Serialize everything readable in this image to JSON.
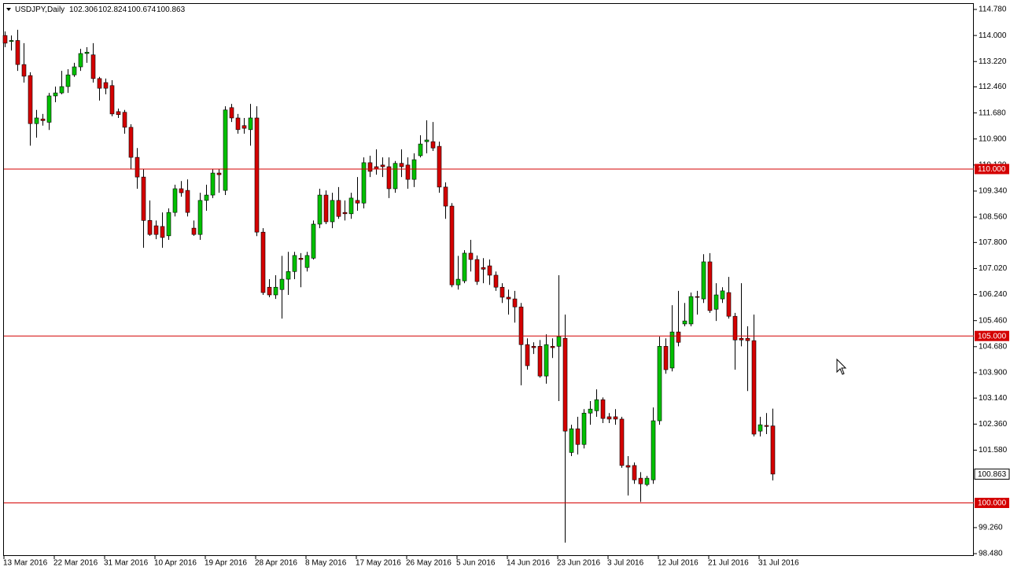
{
  "chart_data": {
    "type": "candlestick",
    "symbol": "USDJPY,Daily",
    "up_color": "#00c000",
    "down_color": "#d40000",
    "wick_color": "#000000",
    "hline_color": "#d40000",
    "ylim": [
      98.41,
      114.945
    ],
    "yticks": [
      {
        "value": 114.78,
        "label": "114.780"
      },
      {
        "value": 114.0,
        "label": "114.000"
      },
      {
        "value": 113.22,
        "label": "113.220"
      },
      {
        "value": 112.46,
        "label": "112.460"
      },
      {
        "value": 111.68,
        "label": "111.680"
      },
      {
        "value": 110.9,
        "label": "110.900"
      },
      {
        "value": 110.12,
        "label": "110.120"
      },
      {
        "value": 109.34,
        "label": "109.340"
      },
      {
        "value": 108.56,
        "label": "108.560"
      },
      {
        "value": 107.8,
        "label": "107.800"
      },
      {
        "value": 107.02,
        "label": "107.020"
      },
      {
        "value": 106.24,
        "label": "106.240"
      },
      {
        "value": 105.46,
        "label": "105.460"
      },
      {
        "value": 104.68,
        "label": "104.680"
      },
      {
        "value": 103.9,
        "label": "103.900"
      },
      {
        "value": 103.14,
        "label": "103.140"
      },
      {
        "value": 102.36,
        "label": "102.360"
      },
      {
        "value": 101.58,
        "label": "101.580"
      },
      {
        "value": 99.26,
        "label": "99.260"
      },
      {
        "value": 98.48,
        "label": "98.480"
      }
    ],
    "hlines": [
      {
        "value": 110,
        "label": "110.000"
      },
      {
        "value": 105,
        "label": "105.000"
      },
      {
        "value": 100,
        "label": "100.000"
      }
    ],
    "categories": [
      "13 Mar 2016",
      null,
      null,
      null,
      null,
      null,
      null,
      null,
      "22 Mar 2016",
      null,
      null,
      null,
      null,
      null,
      null,
      null,
      "31 Mar 2016",
      null,
      null,
      null,
      null,
      null,
      null,
      null,
      "10 Apr 2016",
      null,
      null,
      null,
      null,
      null,
      null,
      null,
      "19 Apr 2016",
      null,
      null,
      null,
      null,
      null,
      null,
      null,
      "28 Apr 2016",
      null,
      null,
      null,
      null,
      null,
      null,
      null,
      "8 May 2016",
      null,
      null,
      null,
      null,
      null,
      null,
      null,
      "17 May 2016",
      null,
      null,
      null,
      null,
      null,
      null,
      null,
      "26 May 2016",
      null,
      null,
      null,
      null,
      null,
      null,
      null,
      "5 Jun 2016",
      null,
      null,
      null,
      null,
      null,
      null,
      null,
      "14 Jun 2016",
      null,
      null,
      null,
      null,
      null,
      null,
      null,
      "23 Jun 2016",
      null,
      null,
      null,
      null,
      null,
      null,
      null,
      "3 Jul 2016",
      null,
      null,
      null,
      null,
      null,
      null,
      null,
      "12 Jul 2016",
      null,
      null,
      null,
      null,
      null,
      null,
      null,
      "21 Jul 2016",
      null,
      null,
      null,
      null,
      null,
      null,
      null,
      "31 Jul 2016",
      null,
      null
    ],
    "open": [
      114.0,
      113.82,
      113.85,
      113.13,
      112.8,
      111.36,
      111.5,
      111.4,
      112.19,
      112.28,
      112.47,
      112.82,
      113.06,
      113.46,
      113.42,
      112.71,
      112.59,
      112.5,
      111.72,
      111.7,
      111.25,
      110.35,
      109.76,
      108.46,
      108.3,
      108.28,
      108.0,
      108.7,
      109.41,
      109.36,
      108.23,
      108.04,
      109.06,
      109.22,
      109.88,
      109.36,
      111.84,
      111.53,
      111.3,
      111.18,
      111.53,
      108.11,
      106.46,
      106.23,
      106.39,
      106.7,
      106.93,
      107.33,
      107.05,
      107.33,
      108.35,
      109.22,
      108.42,
      109.06,
      108.7,
      108.66,
      109.06,
      108.98,
      110.19,
      110.07,
      110.12,
      110.07,
      109.41,
      110.17,
      110.12,
      109.69,
      110.4,
      110.82,
      110.82,
      110.68,
      109.46,
      108.89,
      106.53,
      106.65,
      107.48,
      107.29,
      107.05,
      107.1,
      106.82,
      106.46,
      106.16,
      106.11,
      105.87,
      104.74,
      104.69,
      104.69,
      103.8,
      104.69,
      104.69,
      104.93,
      101.51,
      102.22,
      101.75,
      102.69,
      102.76,
      103.09,
      102.58,
      102.58,
      102.51,
      101.12,
      101.12,
      100.74,
      100.55,
      100.69,
      102.46,
      104.69,
      104.04,
      105.12,
      105.36,
      105.36,
      106.18,
      106.11,
      107.22,
      105.8,
      106.11,
      106.3,
      105.59,
      104.93,
      104.93,
      104.86,
      102.15,
      102.32,
      102.306
    ],
    "high": [
      114.12,
      114.0,
      114.17,
      113.77,
      112.9,
      111.77,
      111.65,
      112.28,
      112.47,
      112.94,
      112.99,
      113.18,
      113.6,
      113.65,
      113.77,
      112.76,
      112.71,
      112.66,
      111.81,
      111.77,
      111.34,
      110.63,
      109.99,
      109.06,
      108.46,
      108.7,
      108.82,
      109.53,
      109.64,
      109.69,
      108.46,
      109.29,
      109.53,
      110.0,
      110.0,
      111.88,
      111.95,
      111.65,
      111.53,
      111.95,
      111.88,
      108.23,
      106.7,
      106.82,
      107.4,
      107.52,
      107.52,
      107.48,
      107.52,
      108.46,
      109.41,
      109.36,
      109.29,
      109.46,
      109.06,
      109.29,
      109.76,
      110.35,
      110.4,
      110.59,
      110.35,
      110.35,
      110.24,
      110.59,
      110.35,
      110.47,
      111.01,
      111.46,
      111.41,
      110.82,
      109.6,
      108.98,
      107.4,
      107.57,
      107.88,
      107.41,
      107.33,
      107.29,
      106.93,
      106.58,
      106.39,
      106.35,
      105.99,
      104.93,
      104.81,
      104.88,
      105.05,
      104.93,
      106.82,
      105.64,
      102.34,
      102.58,
      102.81,
      103.05,
      103.4,
      103.16,
      102.69,
      102.81,
      102.58,
      101.4,
      101.21,
      100.92,
      100.81,
      102.86,
      104.98,
      104.93,
      105.92,
      106.35,
      105.99,
      106.3,
      106.35,
      107.45,
      107.48,
      106.58,
      106.46,
      106.77,
      105.69,
      106.58,
      105.29,
      105.64,
      102.58,
      102.69,
      102.824
    ],
    "low": [
      113.65,
      113.55,
      112.94,
      112.59,
      110.7,
      110.94,
      111.3,
      111.17,
      112.0,
      112.24,
      112.28,
      112.76,
      112.94,
      113.18,
      112.59,
      112.05,
      112.24,
      111.58,
      111.53,
      111.06,
      110.0,
      109.41,
      107.64,
      108.0,
      107.9,
      107.64,
      107.88,
      108.58,
      109.17,
      108.58,
      108.0,
      107.88,
      108.75,
      109.13,
      109.29,
      109.22,
      111.41,
      111.06,
      111.06,
      110.7,
      107.99,
      106.23,
      106.16,
      106.11,
      105.52,
      106.23,
      106.7,
      106.46,
      106.93,
      107.29,
      108.23,
      108.35,
      108.23,
      108.51,
      108.46,
      108.51,
      108.75,
      108.82,
      109.76,
      109.83,
      109.76,
      109.13,
      109.29,
      109.76,
      109.41,
      109.46,
      110.35,
      110.47,
      110.54,
      109.29,
      108.51,
      106.46,
      106.39,
      106.58,
      106.93,
      106.53,
      106.58,
      106.53,
      106.35,
      105.99,
      105.64,
      105.4,
      103.52,
      103.99,
      104.46,
      103.75,
      103.57,
      104.34,
      103.05,
      98.81,
      101.4,
      101.45,
      101.63,
      102.34,
      102.58,
      102.39,
      102.39,
      102.34,
      101.05,
      100.22,
      100.57,
      100.03,
      100.5,
      100.57,
      102.34,
      103.87,
      103.94,
      104.69,
      105.29,
      105.29,
      105.64,
      105.99,
      105.69,
      105.45,
      105.99,
      105.52,
      103.99,
      104.69,
      103.35,
      101.99,
      101.99,
      102.06,
      100.674
    ],
    "close": [
      113.77,
      113.85,
      113.13,
      112.78,
      111.36,
      111.53,
      111.45,
      112.19,
      112.28,
      112.47,
      112.82,
      113.06,
      113.46,
      113.5,
      112.71,
      112.42,
      112.42,
      111.65,
      111.63,
      111.25,
      110.35,
      109.76,
      108.46,
      108.04,
      108.04,
      107.95,
      108.7,
      109.41,
      109.29,
      108.7,
      108.04,
      109.06,
      109.22,
      109.88,
      109.83,
      111.77,
      111.53,
      111.18,
      111.22,
      111.53,
      108.11,
      106.3,
      106.23,
      106.46,
      106.7,
      106.93,
      107.41,
      107.29,
      107.41,
      108.35,
      109.22,
      108.42,
      109.06,
      108.58,
      108.66,
      109.13,
      108.98,
      110.19,
      109.93,
      110.0,
      110.07,
      109.41,
      110.17,
      110.07,
      109.69,
      110.28,
      110.75,
      110.87,
      110.63,
      109.46,
      108.89,
      106.53,
      106.7,
      107.48,
      107.29,
      106.63,
      107.0,
      106.82,
      106.46,
      106.16,
      106.11,
      105.87,
      104.74,
      104.11,
      104.65,
      103.8,
      104.74,
      104.65,
      104.98,
      102.15,
      102.22,
      101.75,
      102.69,
      102.81,
      103.09,
      102.53,
      102.51,
      102.51,
      101.12,
      101.07,
      100.69,
      100.57,
      100.74,
      102.46,
      104.69,
      103.99,
      105.12,
      104.81,
      105.45,
      106.18,
      106.16,
      107.22,
      105.76,
      106.23,
      106.35,
      105.59,
      104.88,
      104.88,
      104.86,
      102.06,
      102.34,
      102.29,
      100.863
    ]
  }
}
